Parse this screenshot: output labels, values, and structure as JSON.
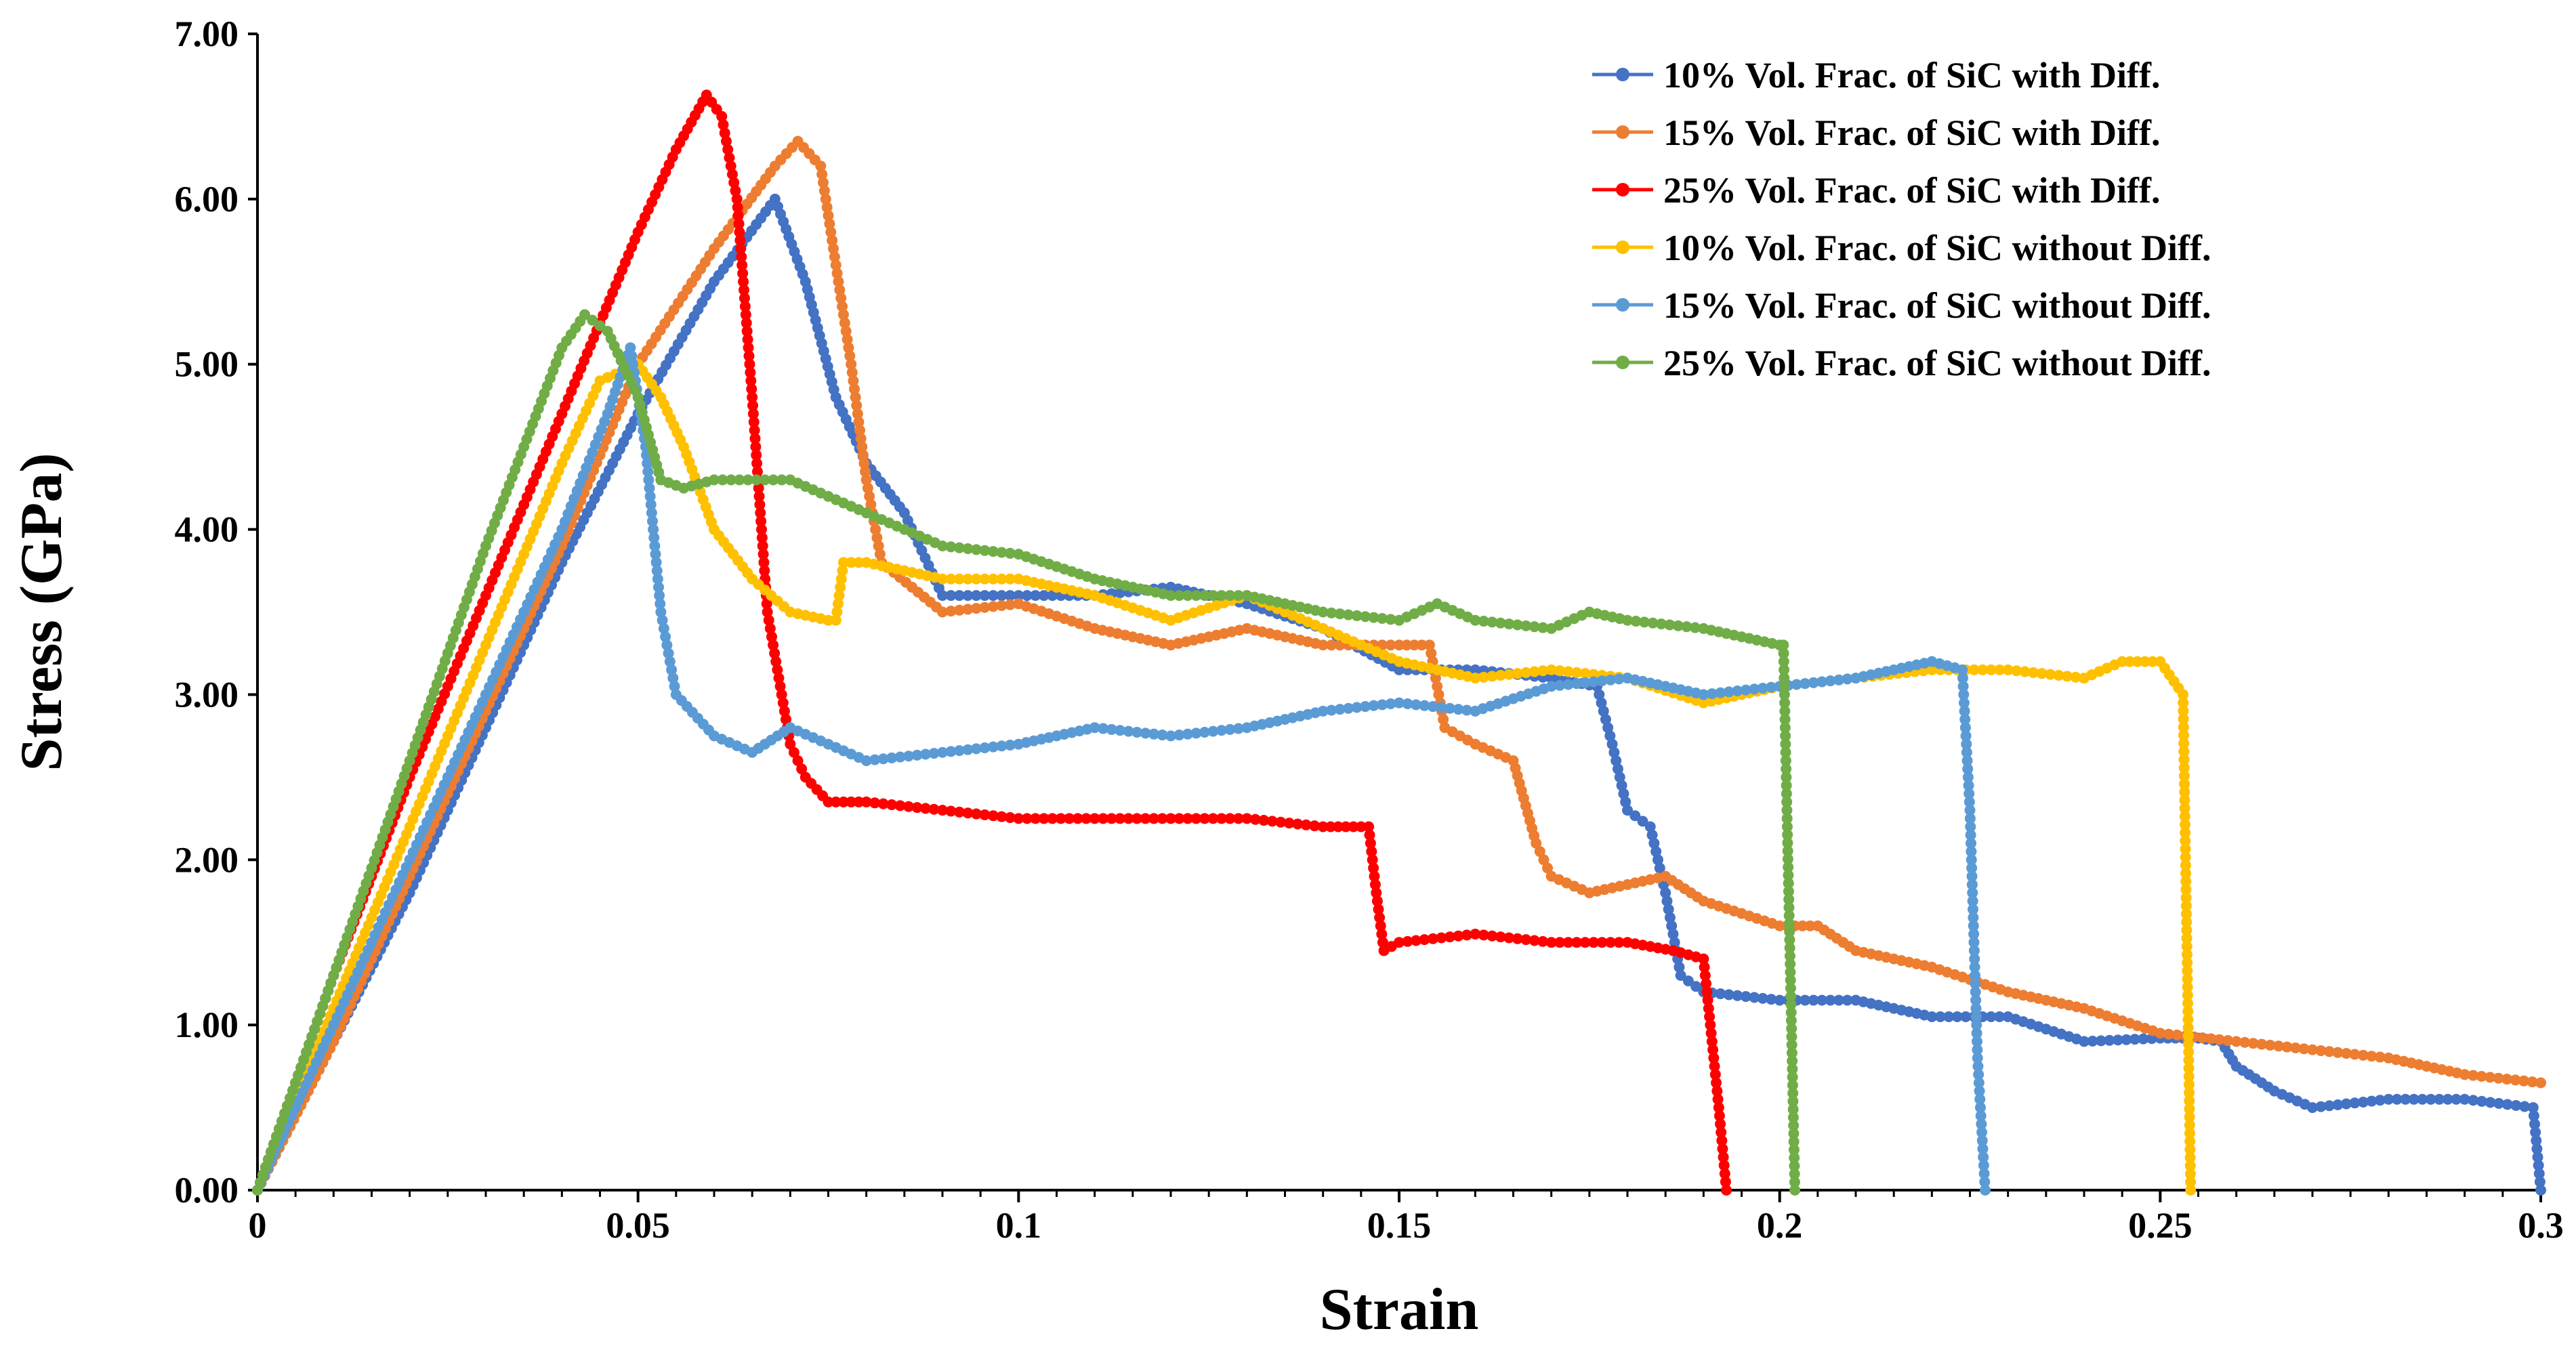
{
  "chart_data": {
    "type": "line",
    "title": "",
    "xlabel": "Strain",
    "ylabel": "Stress (GPa)",
    "xlim": [
      0,
      0.3
    ],
    "ylim": [
      0,
      7
    ],
    "grid": false,
    "legend_position": "top-right",
    "x_ticks": [
      0,
      0.05,
      0.1,
      0.15,
      0.2,
      0.25,
      0.3
    ],
    "x_tick_labels": [
      "0",
      "0.05",
      "0.1",
      "0.15",
      "0.2",
      "0.25",
      "0.3"
    ],
    "y_ticks": [
      0,
      1,
      2,
      3,
      4,
      5,
      6,
      7
    ],
    "y_tick_labels": [
      "0.00",
      "1.00",
      "2.00",
      "3.00",
      "4.00",
      "5.00",
      "6.00",
      "7.00"
    ],
    "series": [
      {
        "name": "10% Vol. Frac. of SiC with Diff.",
        "color": "#4472C4",
        "x": [
          0,
          0.01,
          0.02,
          0.03,
          0.04,
          0.05,
          0.06,
          0.068,
          0.072,
          0.076,
          0.08,
          0.085,
          0.09,
          0.1,
          0.11,
          0.12,
          0.13,
          0.14,
          0.15,
          0.16,
          0.17,
          0.176,
          0.178,
          0.18,
          0.183,
          0.185,
          0.187,
          0.19,
          0.2,
          0.21,
          0.22,
          0.23,
          0.24,
          0.25,
          0.255,
          0.258,
          0.26,
          0.265,
          0.27,
          0.28,
          0.29,
          0.299,
          0.3
        ],
        "y": [
          0,
          0.9,
          1.8,
          2.8,
          3.8,
          4.7,
          5.5,
          6.0,
          5.5,
          4.8,
          4.4,
          4.1,
          3.6,
          3.6,
          3.6,
          3.65,
          3.55,
          3.4,
          3.15,
          3.15,
          3.1,
          3.05,
          2.7,
          2.3,
          2.2,
          1.8,
          1.3,
          1.2,
          1.15,
          1.15,
          1.05,
          1.05,
          0.9,
          0.92,
          0.92,
          0.9,
          0.75,
          0.6,
          0.5,
          0.55,
          0.55,
          0.5,
          0
        ]
      },
      {
        "name": "15% Vol. Frac. of SiC with Diff.",
        "color": "#ED7D31",
        "x": [
          0,
          0.01,
          0.02,
          0.03,
          0.04,
          0.05,
          0.06,
          0.068,
          0.071,
          0.074,
          0.076,
          0.078,
          0.08,
          0.082,
          0.09,
          0.1,
          0.11,
          0.12,
          0.13,
          0.14,
          0.15,
          0.154,
          0.156,
          0.16,
          0.165,
          0.168,
          0.17,
          0.175,
          0.18,
          0.185,
          0.19,
          0.2,
          0.205,
          0.21,
          0.22,
          0.23,
          0.24,
          0.25,
          0.26,
          0.27,
          0.28,
          0.29,
          0.3
        ],
        "y": [
          0,
          0.9,
          1.9,
          2.9,
          3.9,
          5.0,
          5.7,
          6.2,
          6.35,
          6.2,
          5.6,
          5.0,
          4.3,
          3.8,
          3.5,
          3.55,
          3.4,
          3.3,
          3.4,
          3.3,
          3.3,
          3.3,
          2.8,
          2.7,
          2.6,
          2.1,
          1.9,
          1.8,
          1.85,
          1.9,
          1.75,
          1.6,
          1.6,
          1.45,
          1.35,
          1.2,
          1.1,
          0.95,
          0.9,
          0.85,
          0.8,
          0.7,
          0.65
        ]
      },
      {
        "name": "25% Vol. Frac. of SiC with Diff.",
        "color": "#FF0000",
        "x": [
          0,
          0.01,
          0.02,
          0.03,
          0.04,
          0.05,
          0.055,
          0.059,
          0.061,
          0.063,
          0.065,
          0.067,
          0.07,
          0.072,
          0.075,
          0.08,
          0.09,
          0.1,
          0.11,
          0.12,
          0.13,
          0.14,
          0.146,
          0.147,
          0.148,
          0.15,
          0.16,
          0.17,
          0.18,
          0.186,
          0.19,
          0.192,
          0.193
        ],
        "y": [
          0,
          1.3,
          2.5,
          3.6,
          4.7,
          5.8,
          6.3,
          6.63,
          6.5,
          6.0,
          4.8,
          3.5,
          2.7,
          2.5,
          2.35,
          2.35,
          2.3,
          2.25,
          2.25,
          2.25,
          2.25,
          2.2,
          2.2,
          1.8,
          1.45,
          1.5,
          1.55,
          1.5,
          1.5,
          1.45,
          1.4,
          0.5,
          0
        ]
      },
      {
        "name": "10% Vol. Frac. of SiC without Diff.",
        "color": "#FFC000",
        "x": [
          0,
          0.01,
          0.02,
          0.03,
          0.04,
          0.045,
          0.05,
          0.053,
          0.056,
          0.06,
          0.065,
          0.07,
          0.075,
          0.076,
          0.077,
          0.08,
          0.09,
          0.1,
          0.11,
          0.12,
          0.13,
          0.14,
          0.15,
          0.16,
          0.17,
          0.18,
          0.19,
          0.2,
          0.21,
          0.22,
          0.23,
          0.24,
          0.245,
          0.25,
          0.253,
          0.254
        ],
        "y": [
          0,
          1.1,
          2.2,
          3.3,
          4.4,
          4.9,
          5.0,
          4.8,
          4.5,
          4.0,
          3.7,
          3.5,
          3.45,
          3.45,
          3.8,
          3.8,
          3.7,
          3.7,
          3.6,
          3.45,
          3.6,
          3.4,
          3.2,
          3.1,
          3.15,
          3.1,
          2.95,
          3.05,
          3.1,
          3.15,
          3.15,
          3.1,
          3.2,
          3.2,
          3.0,
          0
        ]
      },
      {
        "name": "15% Vol. Frac. of SiC without Diff.",
        "color": "#5B9BD5",
        "x": [
          0,
          0.01,
          0.02,
          0.03,
          0.04,
          0.046,
          0.049,
          0.051,
          0.053,
          0.055,
          0.06,
          0.065,
          0.07,
          0.08,
          0.09,
          0.1,
          0.11,
          0.12,
          0.13,
          0.14,
          0.15,
          0.16,
          0.17,
          0.18,
          0.19,
          0.2,
          0.21,
          0.22,
          0.224,
          0.225,
          0.226,
          0.227
        ],
        "y": [
          0,
          1.0,
          2.0,
          3.0,
          4.0,
          4.7,
          5.1,
          4.5,
          3.5,
          3.0,
          2.75,
          2.65,
          2.8,
          2.6,
          2.65,
          2.7,
          2.8,
          2.75,
          2.8,
          2.9,
          2.95,
          2.9,
          3.05,
          3.1,
          3.0,
          3.05,
          3.1,
          3.2,
          3.15,
          2.3,
          0.8,
          0
        ]
      },
      {
        "name": "25% Vol. Frac. of SiC without Diff.",
        "color": "#70AD47",
        "x": [
          0,
          0.01,
          0.02,
          0.03,
          0.04,
          0.043,
          0.046,
          0.05,
          0.053,
          0.056,
          0.06,
          0.07,
          0.08,
          0.09,
          0.1,
          0.11,
          0.12,
          0.13,
          0.14,
          0.15,
          0.155,
          0.16,
          0.17,
          0.175,
          0.18,
          0.19,
          0.2,
          0.2005,
          0.201,
          0.202
        ],
        "y": [
          0,
          1.3,
          2.6,
          3.9,
          5.1,
          5.3,
          5.2,
          4.8,
          4.3,
          4.25,
          4.3,
          4.3,
          4.1,
          3.9,
          3.85,
          3.7,
          3.6,
          3.6,
          3.5,
          3.45,
          3.55,
          3.45,
          3.4,
          3.5,
          3.45,
          3.4,
          3.3,
          3.3,
          2.2,
          0
        ]
      }
    ]
  }
}
